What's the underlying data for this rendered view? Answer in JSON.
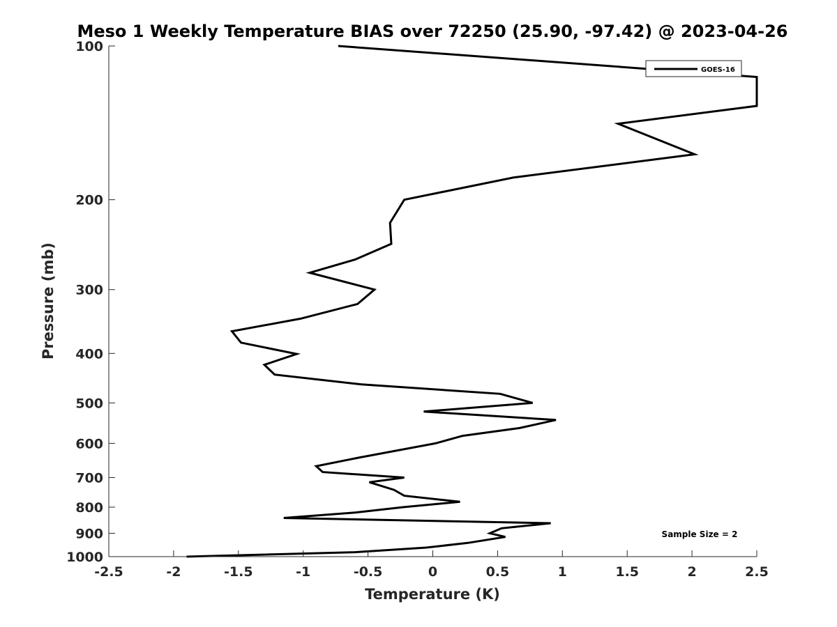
{
  "chart_data": {
    "type": "line",
    "title": "Meso 1 Weekly Temperature BIAS over 72250 (25.90, -97.42) @ 2023-04-26",
    "xlabel": "Temperature (K)",
    "ylabel": "Pressure (mb)",
    "xlim": [
      -2.5,
      2.5
    ],
    "ylim": [
      100,
      1000
    ],
    "y_scale": "log",
    "y_reversed": true,
    "x_ticks": [
      "-2.5",
      "-2",
      "-1.5",
      "-1",
      "-0.5",
      "0",
      "0.5",
      "1",
      "1.5",
      "2",
      "2.5"
    ],
    "x_tick_values": [
      -2.5,
      -2,
      -1.5,
      -1,
      -0.5,
      0,
      0.5,
      1,
      1.5,
      2,
      2.5
    ],
    "y_ticks": [
      "100",
      "200",
      "300",
      "400",
      "500",
      "600",
      "700",
      "800",
      "900",
      "1000"
    ],
    "y_tick_values": [
      100,
      200,
      300,
      400,
      500,
      600,
      700,
      800,
      900,
      1000
    ],
    "grid": false,
    "legend": "top-right",
    "annotation": "Sample Size = 2",
    "series": [
      {
        "name": "GOES-16",
        "color": "#000000",
        "points": [
          [
            -0.73,
            100
          ],
          [
            2.5,
            115
          ],
          [
            2.5,
            131
          ],
          [
            1.43,
            142
          ],
          [
            2.02,
            163
          ],
          [
            0.62,
            181
          ],
          [
            -0.22,
            200
          ],
          [
            -0.33,
            222
          ],
          [
            -0.32,
            244
          ],
          [
            -0.6,
            262
          ],
          [
            -0.95,
            278
          ],
          [
            -0.45,
            300
          ],
          [
            -0.58,
            320
          ],
          [
            -1.02,
            342
          ],
          [
            -1.55,
            362
          ],
          [
            -1.48,
            381
          ],
          [
            -1.05,
            401
          ],
          [
            -1.3,
            421
          ],
          [
            -1.22,
            440
          ],
          [
            -0.55,
            460
          ],
          [
            0.52,
            480
          ],
          [
            0.77,
            500
          ],
          [
            -0.07,
            520
          ],
          [
            0.95,
            540
          ],
          [
            0.67,
            560
          ],
          [
            0.23,
            580
          ],
          [
            0.02,
            600
          ],
          [
            -0.57,
            640
          ],
          [
            -0.9,
            665
          ],
          [
            -0.85,
            683
          ],
          [
            -0.22,
            700
          ],
          [
            -0.49,
            715
          ],
          [
            -0.3,
            740
          ],
          [
            -0.22,
            760
          ],
          [
            0.21,
            781
          ],
          [
            -0.23,
            800
          ],
          [
            -0.6,
            820
          ],
          [
            -1.15,
            840
          ],
          [
            0.91,
            860
          ],
          [
            0.53,
            880
          ],
          [
            0.44,
            900
          ],
          [
            0.56,
            915
          ],
          [
            0.27,
            940
          ],
          [
            -0.05,
            960
          ],
          [
            -0.6,
            980
          ],
          [
            -1.9,
            1000
          ]
        ]
      }
    ]
  }
}
